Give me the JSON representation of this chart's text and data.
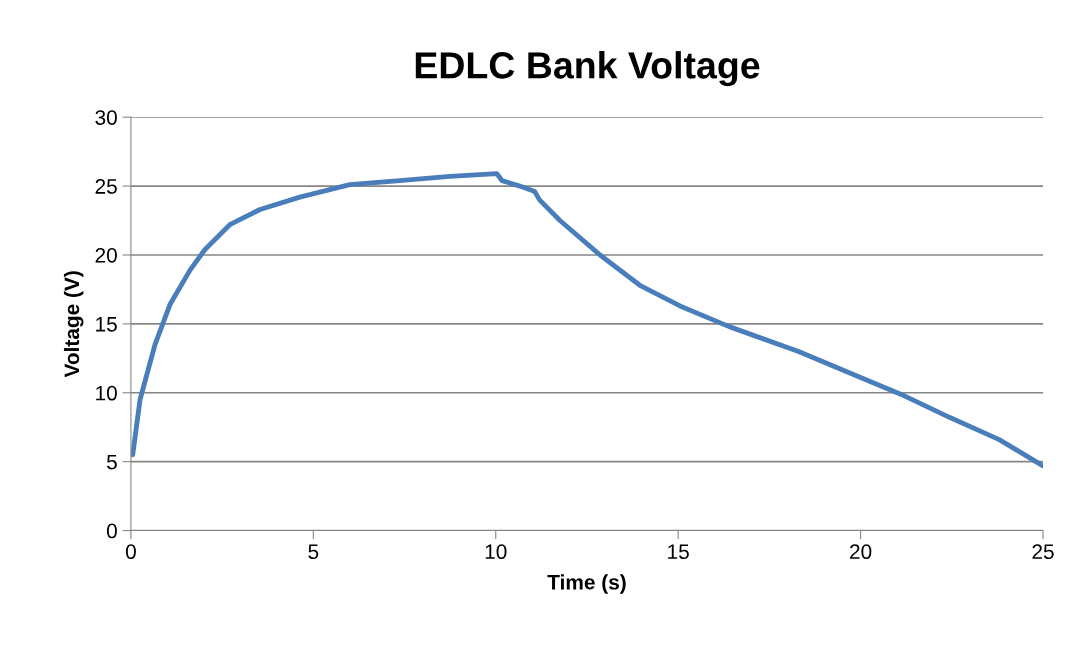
{
  "chart_data": {
    "type": "line",
    "title": "EDLC Bank Voltage",
    "xlabel": "Time (s)",
    "ylabel": "Voltage (V)",
    "series": [
      {
        "color": "#4a7ebb",
        "x": [
          0.05,
          0.25,
          0.66,
          1.07,
          1.62,
          2.03,
          2.71,
          3.54,
          4.63,
          6.0,
          7.37,
          8.74,
          10.03,
          10.17,
          10.66,
          11.07,
          11.2,
          11.76,
          12.86,
          13.95,
          15.05,
          16.4,
          18.3,
          20.0,
          21.1,
          22.45,
          23.8,
          25.0
        ],
        "values": [
          5.5,
          9.5,
          13.5,
          16.4,
          18.9,
          20.4,
          22.2,
          23.3,
          24.2,
          25.1,
          25.4,
          25.7,
          25.9,
          25.4,
          25.0,
          24.6,
          24.0,
          22.5,
          20.0,
          17.8,
          16.3,
          14.8,
          13.0,
          11.1,
          9.9,
          8.2,
          6.6,
          4.7
        ]
      }
    ],
    "xlim": [
      0,
      25
    ],
    "xticks": [
      0,
      5,
      10,
      15,
      20,
      25
    ],
    "ylim": [
      0,
      30
    ],
    "yticks": [
      0,
      5,
      10,
      15,
      20,
      25,
      30
    ],
    "grid": "y",
    "legend": false,
    "marker": "none",
    "line_style": "solid"
  }
}
